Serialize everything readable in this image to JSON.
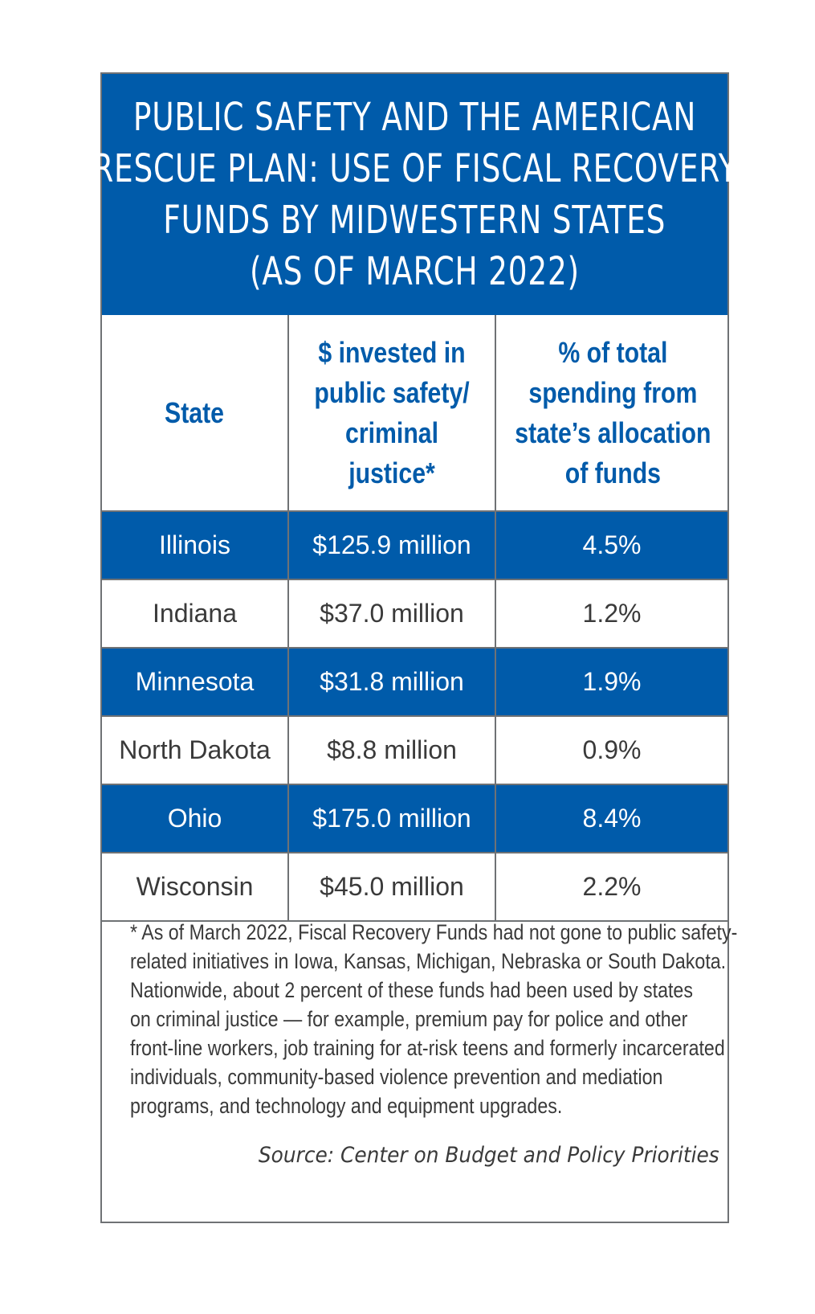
{
  "chart_data": {
    "type": "table",
    "title_lines": [
      "Public Safety and the American",
      "Rescue Plan: Use of Fiscal Recovery",
      "Funds by Midwestern States",
      "(as of March 2022)"
    ],
    "columns": [
      [
        "State"
      ],
      [
        "$ invested in",
        "public safety/",
        "criminal",
        "justice*"
      ],
      [
        "% of total",
        "spending from",
        "state’s allocation",
        "of funds"
      ]
    ],
    "rows": [
      {
        "state": "Illinois",
        "invested": "$125.9 million",
        "percent": "4.5%"
      },
      {
        "state": "Indiana",
        "invested": "$37.0 million",
        "percent": "1.2%"
      },
      {
        "state": "Minnesota",
        "invested": "$31.8 million",
        "percent": "1.9%"
      },
      {
        "state": "North Dakota",
        "invested": "$8.8 million",
        "percent": "0.9%"
      },
      {
        "state": "Ohio",
        "invested": "$175.0 million",
        "percent": "8.4%"
      },
      {
        "state": "Wisconsin",
        "invested": "$45.0 million",
        "percent": "2.2%"
      }
    ],
    "footnote_lines": [
      "* As of March 2022, Fiscal Recovery Funds had not gone to public safety-",
      "related initiatives in Iowa, Kansas, Michigan, Nebraska or South Dakota.",
      "Nationwide, about 2 percent of these funds had been used by states",
      "on criminal justice — for example, premium pay for police and other",
      "front-line workers, job training for at-risk teens and formerly incarcerated",
      "individuals, community-based violence prevention and mediation",
      "programs, and technology and equipment upgrades."
    ],
    "source": "Source: Center on Budget and Policy Priorities"
  },
  "colors": {
    "brand_blue": "#005baa",
    "border_gray": "#6f7275",
    "text_dark": "#3a3a3a"
  }
}
